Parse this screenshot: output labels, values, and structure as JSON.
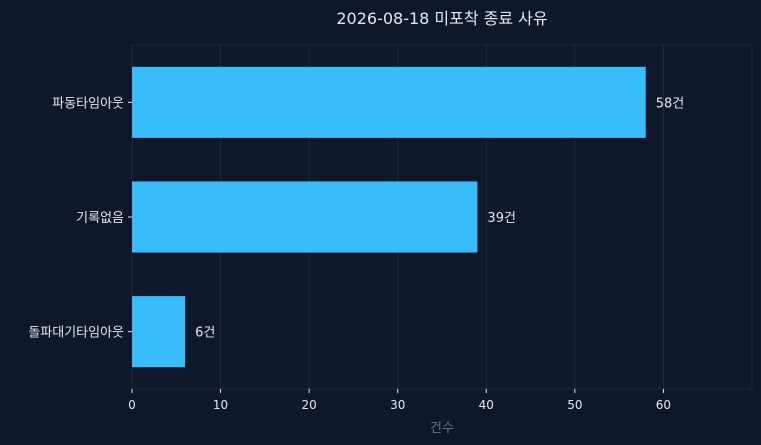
{
  "chart_data": {
    "type": "bar",
    "orientation": "horizontal",
    "title": "2026-08-18 미포착 종료 사유",
    "xlabel": "건수",
    "ylabel": "",
    "categories": [
      "파동타임아웃",
      "기록없음",
      "돌파대기타임아웃"
    ],
    "values": [
      58,
      39,
      6
    ],
    "data_labels": [
      "58건",
      "39건",
      "6건"
    ],
    "xlim": [
      0,
      70
    ],
    "xticks": [
      0,
      10,
      20,
      30,
      40,
      50,
      60
    ],
    "grid": true,
    "legend": "none",
    "colors": {
      "background": "#0f172a",
      "bar": "#38bdf8",
      "grid": "#334155",
      "text": "#e2e8f0",
      "axis_title": "#64748b"
    }
  }
}
